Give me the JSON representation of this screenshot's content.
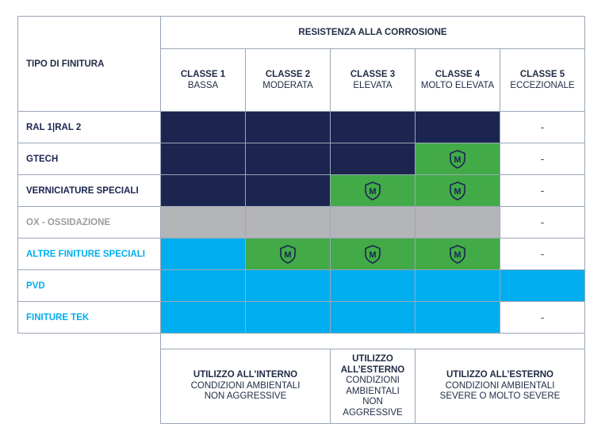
{
  "header": {
    "finish_type_label": "TIPO DI FINITURA",
    "corrosion_title": "RESISTENZA ALLA CORROSIONE",
    "classes": [
      {
        "name": "CLASSE 1",
        "level": "BASSA"
      },
      {
        "name": "CLASSE 2",
        "level": "MODERATA"
      },
      {
        "name": "CLASSE 3",
        "level": "ELEVATA"
      },
      {
        "name": "CLASSE 4",
        "level": "MOLTO ELEVATA"
      },
      {
        "name": "CLASSE 5",
        "level": "ECCEZIONALE"
      }
    ]
  },
  "rows": [
    {
      "label": "RAL 1|RAL 2",
      "label_color": "#1b2550",
      "cells": [
        "navy",
        "navy",
        "navy",
        "navy",
        "dash"
      ]
    },
    {
      "label": "GTECH",
      "label_color": "#1b2550",
      "cells": [
        "navy",
        "navy",
        "navy",
        "green-m",
        "dash"
      ]
    },
    {
      "label": "VERNICIATURE SPECIALI",
      "label_color": "#1b2550",
      "cells": [
        "navy",
        "navy",
        "green-m",
        "green-m",
        "dash"
      ]
    },
    {
      "label": "OX - OSSIDAZIONE",
      "label_color": "#9a9ca0",
      "cells": [
        "grey",
        "grey",
        "grey",
        "grey",
        "dash"
      ]
    },
    {
      "label": "ALTRE FINITURE SPECIALI",
      "label_color": "#00aeef",
      "cells": [
        "cyan",
        "green-m",
        "green-m",
        "green-m",
        "dash"
      ]
    },
    {
      "label": "PVD",
      "label_color": "#00aeef",
      "cells": [
        "cyan",
        "cyan",
        "cyan",
        "cyan",
        "cyan"
      ]
    },
    {
      "label": "FINITURE TEK",
      "label_color": "#00aeef",
      "cells": [
        "cyan",
        "cyan",
        "cyan",
        "cyan",
        "dash"
      ]
    }
  ],
  "dash_symbol": "-",
  "badge_letter": "M",
  "usage": {
    "internal": {
      "title": "UTILIZZO ALL’INTERNO",
      "text": "CONDIZIONI AMBIENTALI NON AGGRESSIVE"
    },
    "external_mild": {
      "title": "UTILIZZO ALL’ESTERNO",
      "text": "CONDIZIONI AMBIENTALI NON AGGRESSIVE"
    },
    "external_severe": {
      "title": "UTILIZZO ALL’ESTERNO",
      "text": "CONDIZIONI AMBIENTALI SEVERE  O MOLTO SEVERE"
    }
  },
  "colors": {
    "navy": "#1b2550",
    "green": "#42ab48",
    "grey": "#b4b5b9",
    "cyan": "#00aeef",
    "border": "#9aa6b6"
  }
}
